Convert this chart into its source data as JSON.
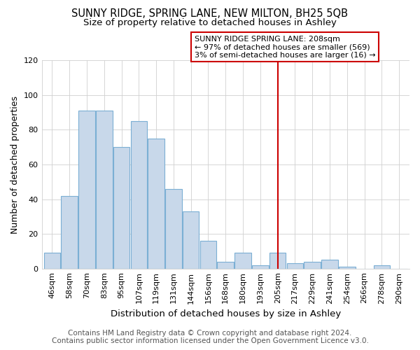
{
  "title": "SUNNY RIDGE, SPRING LANE, NEW MILTON, BH25 5QB",
  "subtitle": "Size of property relative to detached houses in Ashley",
  "xlabel": "Distribution of detached houses by size in Ashley",
  "ylabel": "Number of detached properties",
  "footer_line1": "Contains HM Land Registry data © Crown copyright and database right 2024.",
  "footer_line2": "Contains public sector information licensed under the Open Government Licence v3.0.",
  "bar_labels": [
    "46sqm",
    "58sqm",
    "70sqm",
    "83sqm",
    "95sqm",
    "107sqm",
    "119sqm",
    "131sqm",
    "144sqm",
    "156sqm",
    "168sqm",
    "180sqm",
    "193sqm",
    "205sqm",
    "217sqm",
    "229sqm",
    "241sqm",
    "254sqm",
    "266sqm",
    "278sqm",
    "290sqm"
  ],
  "bar_values": [
    9,
    42,
    91,
    91,
    70,
    85,
    75,
    46,
    33,
    16,
    4,
    9,
    2,
    9,
    3,
    4,
    5,
    1,
    0,
    2,
    0
  ],
  "bar_color": "#c8d8ea",
  "bar_edge_color": "#7bafd4",
  "highlight_index": 13,
  "vline_color": "#cc0000",
  "annotation_text": "SUNNY RIDGE SPRING LANE: 208sqm\n← 97% of detached houses are smaller (569)\n3% of semi-detached houses are larger (16) →",
  "annotation_box_facecolor": "#ffffff",
  "annotation_box_edgecolor": "#cc0000",
  "ylim": [
    0,
    120
  ],
  "yticks": [
    0,
    20,
    40,
    60,
    80,
    100,
    120
  ],
  "background_color": "#ffffff",
  "plot_background": "#ffffff",
  "grid_color": "#d0d0d0",
  "title_fontsize": 10.5,
  "subtitle_fontsize": 9.5,
  "xlabel_fontsize": 9.5,
  "ylabel_fontsize": 9,
  "tick_fontsize": 8,
  "annotation_fontsize": 8,
  "footer_fontsize": 7.5
}
